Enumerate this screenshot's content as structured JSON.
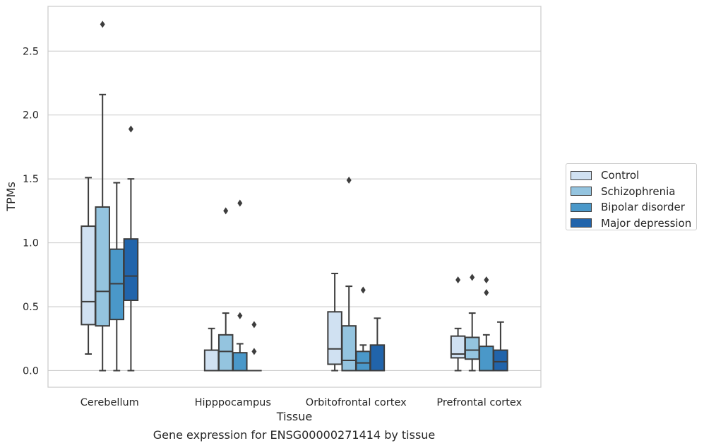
{
  "chart_data": {
    "type": "box",
    "xlabel": "Tissue",
    "ylabel": "TPMs",
    "caption": "Gene expression for ENSG00000271414 by tissue",
    "ylim": [
      -0.13,
      2.85
    ],
    "yticks": [
      0.0,
      0.5,
      1.0,
      1.5,
      2.0,
      2.5
    ],
    "ytick_labels": [
      "0.0",
      "0.5",
      "1.0",
      "1.5",
      "2.0",
      "2.5"
    ],
    "grid": true,
    "legend_position": "right",
    "categories": [
      "Cerebellum",
      "Hipppocampus",
      "Orbitofrontal cortex",
      "Prefrontal cortex"
    ],
    "series": [
      {
        "name": "Control",
        "color": "#d0e1f2",
        "boxes": [
          {
            "whislo": 0.13,
            "q1": 0.36,
            "med": 0.54,
            "q3": 1.13,
            "whishi": 1.51,
            "fliers": []
          },
          {
            "whislo": 0.0,
            "q1": 0.0,
            "med": 0.0,
            "q3": 0.16,
            "whishi": 0.33,
            "fliers": []
          },
          {
            "whislo": 0.0,
            "q1": 0.05,
            "med": 0.17,
            "q3": 0.46,
            "whishi": 0.76,
            "fliers": []
          },
          {
            "whislo": 0.0,
            "q1": 0.1,
            "med": 0.13,
            "q3": 0.27,
            "whishi": 0.33,
            "fliers": [
              0.71
            ]
          }
        ]
      },
      {
        "name": "Schizophrenia",
        "color": "#94c4df",
        "boxes": [
          {
            "whislo": 0.0,
            "q1": 0.35,
            "med": 0.62,
            "q3": 1.28,
            "whishi": 2.16,
            "fliers": [
              2.71
            ]
          },
          {
            "whislo": 0.0,
            "q1": 0.0,
            "med": 0.15,
            "q3": 0.28,
            "whishi": 0.45,
            "fliers": [
              1.25
            ]
          },
          {
            "whislo": 0.0,
            "q1": 0.0,
            "med": 0.08,
            "q3": 0.35,
            "whishi": 0.66,
            "fliers": [
              1.49
            ]
          },
          {
            "whislo": 0.0,
            "q1": 0.09,
            "med": 0.16,
            "q3": 0.26,
            "whishi": 0.45,
            "fliers": [
              0.73
            ]
          }
        ]
      },
      {
        "name": "Bipolar disorder",
        "color": "#4a98c9",
        "boxes": [
          {
            "whislo": 0.0,
            "q1": 0.4,
            "med": 0.68,
            "q3": 0.95,
            "whishi": 1.47,
            "fliers": []
          },
          {
            "whislo": 0.0,
            "q1": 0.0,
            "med": 0.0,
            "q3": 0.14,
            "whishi": 0.21,
            "fliers": [
              1.31,
              0.43
            ]
          },
          {
            "whislo": 0.0,
            "q1": 0.0,
            "med": 0.06,
            "q3": 0.15,
            "whishi": 0.2,
            "fliers": [
              0.63
            ]
          },
          {
            "whislo": 0.0,
            "q1": 0.0,
            "med": 0.0,
            "q3": 0.19,
            "whishi": 0.28,
            "fliers": [
              0.71,
              0.61
            ]
          }
        ]
      },
      {
        "name": "Major depression",
        "color": "#2164ab",
        "boxes": [
          {
            "whislo": 0.0,
            "q1": 0.55,
            "med": 0.74,
            "q3": 1.03,
            "whishi": 1.5,
            "fliers": [
              1.89
            ]
          },
          {
            "whislo": 0.0,
            "q1": 0.0,
            "med": 0.0,
            "q3": 0.0,
            "whishi": 0.0,
            "fliers": [
              0.36,
              0.15
            ]
          },
          {
            "whislo": 0.0,
            "q1": 0.0,
            "med": 0.0,
            "q3": 0.2,
            "whishi": 0.41,
            "fliers": []
          },
          {
            "whislo": 0.0,
            "q1": 0.0,
            "med": 0.07,
            "q3": 0.16,
            "whishi": 0.38,
            "fliers": []
          }
        ]
      }
    ]
  }
}
